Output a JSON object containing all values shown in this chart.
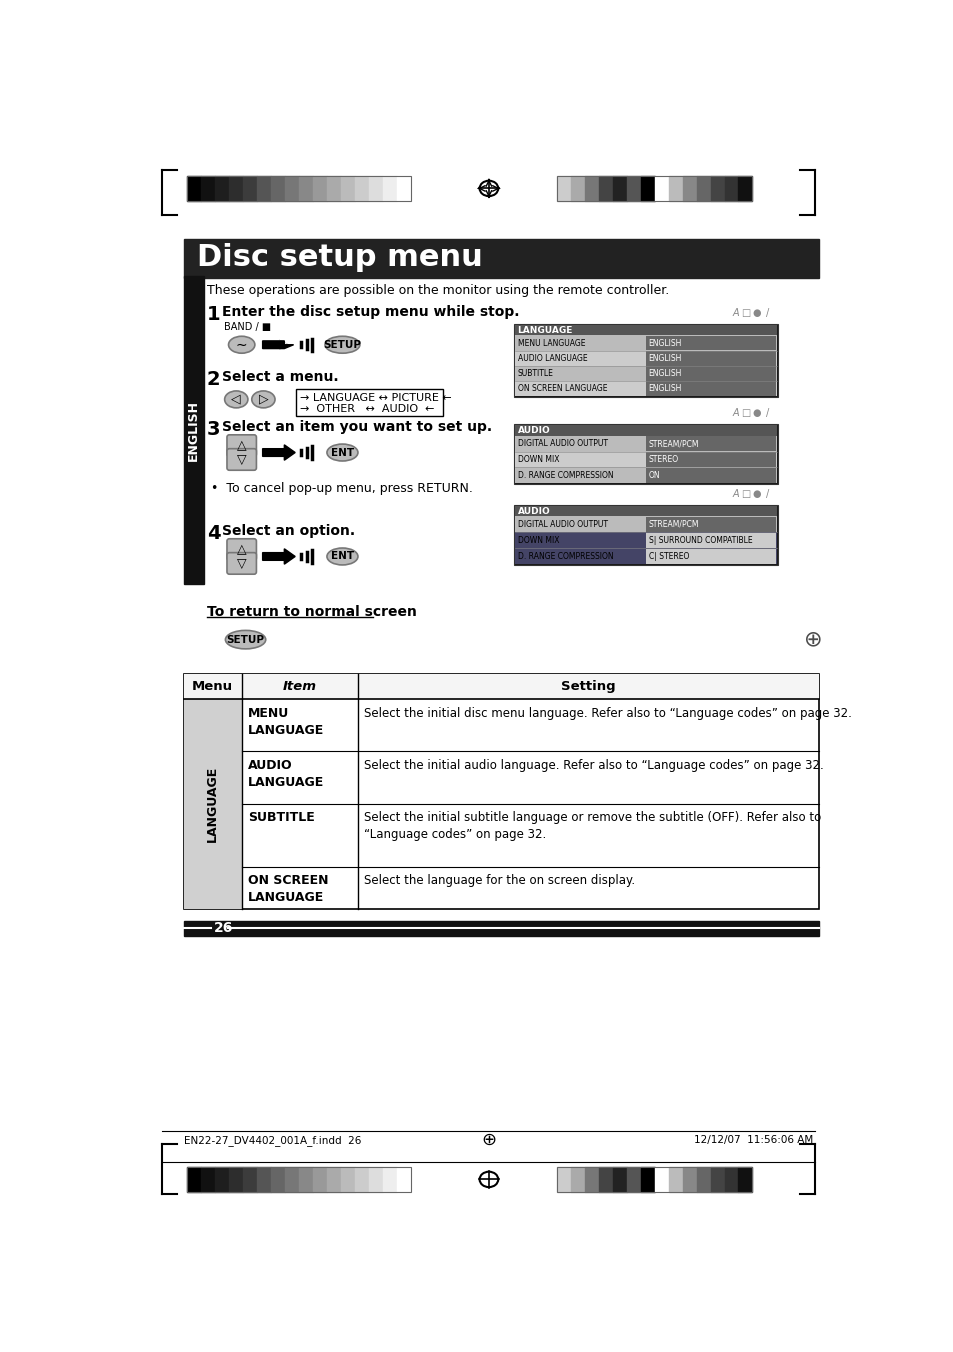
{
  "title": "Disc setup menu",
  "subtitle": "These operations are possible on the monitor using the remote controller.",
  "bg_color": "#ffffff",
  "title_bg_color": "#222222",
  "sidebar_bg": "#111111",
  "sidebar_text": "ENGLISH",
  "step1": "Enter the disc setup menu while stop.",
  "step2": "Select a menu.",
  "step3": "Select an item you want to set up.",
  "step3_note": "•  To cancel pop-up menu, press RETURN.",
  "step4": "Select an option.",
  "return_label": "To return to normal screen",
  "table_headers": [
    "Menu",
    "Item",
    "Setting"
  ],
  "table_menu_col": "LANGUAGE",
  "table_rows": [
    [
      "MENU\nLANGUAGE",
      "Select the initial disc menu language. Refer also to “Language codes” on page 32."
    ],
    [
      "AUDIO\nLANGUAGE",
      "Select the initial audio language. Refer also to “Language codes” on page 32."
    ],
    [
      "SUBTITLE",
      "Select the initial subtitle language or remove the subtitle (OFF). Refer also to\n“Language codes” on page 32."
    ],
    [
      "ON SCREEN\nLANGUAGE",
      "Select the language for the on screen display."
    ]
  ],
  "page_number": "26",
  "footer_left": "EN22-27_DV4402_001A_f.indd  26",
  "footer_right": "12/12/07  11:56:06 AM",
  "bar_colors_left": [
    "#000000",
    "#111111",
    "#1e1e1e",
    "#2d2d2d",
    "#3c3c3c",
    "#555555",
    "#666666",
    "#777777",
    "#888888",
    "#999999",
    "#aaaaaa",
    "#bbbbbb",
    "#cccccc",
    "#dddddd",
    "#eeeeee",
    "#ffffff"
  ],
  "bar_colors_right": [
    "#cccccc",
    "#aaaaaa",
    "#777777",
    "#444444",
    "#222222",
    "#555555",
    "#000000",
    "#ffffff",
    "#bbbbbb",
    "#888888",
    "#666666",
    "#444444",
    "#333333",
    "#111111"
  ]
}
